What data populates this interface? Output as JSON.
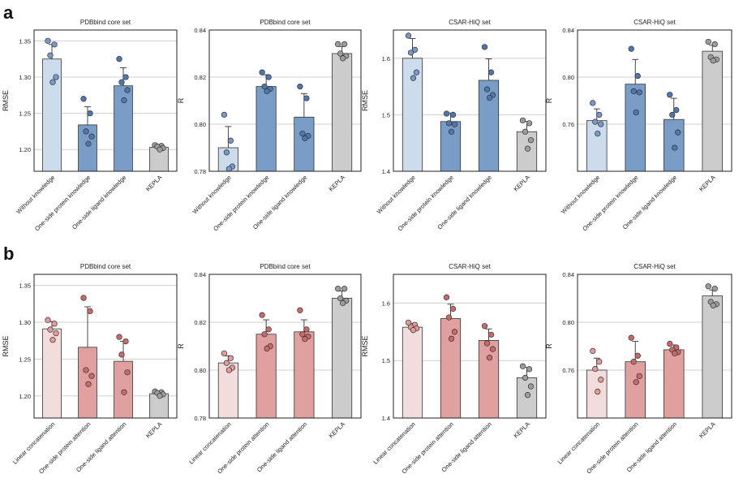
{
  "panel_labels": [
    "a",
    "b"
  ],
  "chart_data": [
    {
      "panel": "a",
      "type": "bar",
      "title": "PDBbind core set",
      "ylabel": "RMSE",
      "ylim": [
        1.17,
        1.365
      ],
      "yticks": [
        1.2,
        1.25,
        1.3,
        1.35
      ],
      "tick_decimals": 2,
      "categories": [
        "Without knowledge",
        "One-side protein knowledge",
        "One-side ligand knowledge",
        "KEPLA"
      ],
      "values": [
        1.325,
        1.234,
        1.288,
        1.203
      ],
      "errors": [
        0.02,
        0.025,
        0.025,
        0.003
      ],
      "colors": [
        "#cddcec",
        "#7a9dc8",
        "#7a9dc8",
        "#cccccc"
      ],
      "dot_colors": [
        "#7899c9",
        "#4f77ad",
        "#4f77ad",
        "#9c9c9c"
      ],
      "points": [
        [
          1.35,
          1.345,
          1.33,
          1.3,
          1.293
        ],
        [
          1.27,
          1.25,
          1.225,
          1.218,
          1.208
        ],
        [
          1.325,
          1.3,
          1.293,
          1.282,
          1.268
        ],
        [
          1.206,
          1.205,
          1.204,
          1.202,
          1.2
        ]
      ]
    },
    {
      "panel": "a",
      "type": "bar",
      "title": "PDBbind core set",
      "ylabel": "R",
      "ylim": [
        0.78,
        0.84
      ],
      "yticks": [
        0.78,
        0.8,
        0.82,
        0.84
      ],
      "tick_decimals": 2,
      "categories": [
        "Without knowledge",
        "One-side protein knowledge",
        "One-side ligand knowledge",
        "KEPLA"
      ],
      "values": [
        0.79,
        0.816,
        0.803,
        0.83
      ],
      "errors": [
        0.009,
        0.005,
        0.01,
        0.003
      ],
      "colors": [
        "#cddcec",
        "#7a9dc8",
        "#7a9dc8",
        "#cccccc"
      ],
      "dot_colors": [
        "#7899c9",
        "#4f77ad",
        "#4f77ad",
        "#9c9c9c"
      ],
      "points": [
        [
          0.804,
          0.793,
          0.788,
          0.782,
          0.781
        ],
        [
          0.822,
          0.82,
          0.816,
          0.815,
          0.814
        ],
        [
          0.816,
          0.811,
          0.796,
          0.795,
          0.794
        ],
        [
          0.834,
          0.834,
          0.83,
          0.829,
          0.828
        ]
      ]
    },
    {
      "panel": "a",
      "type": "bar",
      "title": "CSAR-HiQ set",
      "ylabel": "RMSE",
      "ylim": [
        1.4,
        1.65
      ],
      "yticks": [
        1.4,
        1.5,
        1.6
      ],
      "tick_decimals": 1,
      "categories": [
        "Without knowledge",
        "One-side protein knowledge",
        "One-side ligand knowledge",
        "KEPLA"
      ],
      "values": [
        1.6,
        1.488,
        1.561,
        1.47
      ],
      "errors": [
        0.035,
        0.015,
        0.038,
        0.018
      ],
      "colors": [
        "#cddcec",
        "#7a9dc8",
        "#7a9dc8",
        "#cccccc"
      ],
      "dot_colors": [
        "#7899c9",
        "#4f77ad",
        "#4f77ad",
        "#9c9c9c"
      ],
      "points": [
        [
          1.64,
          1.615,
          1.61,
          1.575,
          1.565
        ],
        [
          1.502,
          1.5,
          1.485,
          1.483,
          1.47
        ],
        [
          1.62,
          1.575,
          1.545,
          1.535,
          1.53
        ],
        [
          1.49,
          1.485,
          1.47,
          1.455,
          1.44
        ]
      ]
    },
    {
      "panel": "a",
      "type": "bar",
      "title": "CSAR-HiQ set",
      "ylabel": "R",
      "ylim": [
        0.72,
        0.84
      ],
      "yticks": [
        0.76,
        0.8,
        0.84
      ],
      "tick_decimals": 2,
      "categories": [
        "Without knowledge",
        "One-side protein knowledge",
        "One-side ligand knowledge",
        "KEPLA"
      ],
      "values": [
        0.763,
        0.794,
        0.764,
        0.822
      ],
      "errors": [
        0.01,
        0.021,
        0.018,
        0.005
      ],
      "colors": [
        "#cddcec",
        "#7a9dc8",
        "#7a9dc8",
        "#cccccc"
      ],
      "dot_colors": [
        "#7899c9",
        "#4f77ad",
        "#4f77ad",
        "#9c9c9c"
      ],
      "points": [
        [
          0.778,
          0.768,
          0.762,
          0.76,
          0.752
        ],
        [
          0.824,
          0.801,
          0.788,
          0.787,
          0.77
        ],
        [
          0.785,
          0.772,
          0.768,
          0.753,
          0.74
        ],
        [
          0.83,
          0.828,
          0.817,
          0.815,
          0.814
        ]
      ]
    },
    {
      "panel": "b",
      "type": "bar",
      "title": "PDBbind core set",
      "ylabel": "RMSE",
      "ylim": [
        1.17,
        1.365
      ],
      "yticks": [
        1.2,
        1.25,
        1.3,
        1.35
      ],
      "tick_decimals": 2,
      "categories": [
        "Linear concatenation",
        "One-side protein attention",
        "One-side ligand attention",
        "KEPLA"
      ],
      "values": [
        1.291,
        1.266,
        1.247,
        1.203
      ],
      "errors": [
        0.01,
        0.055,
        0.027,
        0.003
      ],
      "colors": [
        "#f3dcdc",
        "#e0a0a0",
        "#e0a0a0",
        "#cccccc"
      ],
      "dot_colors": [
        "#e29a9a",
        "#c96a6a",
        "#c96a6a",
        "#9c9c9c"
      ],
      "points": [
        [
          1.303,
          1.298,
          1.29,
          1.285,
          1.276
        ],
        [
          1.333,
          1.315,
          1.235,
          1.227,
          1.216
        ],
        [
          1.28,
          1.274,
          1.256,
          1.232,
          1.205
        ],
        [
          1.206,
          1.205,
          1.204,
          1.202,
          1.2
        ]
      ]
    },
    {
      "panel": "b",
      "type": "bar",
      "title": "PDBbind core set",
      "ylabel": "R",
      "ylim": [
        0.78,
        0.84
      ],
      "yticks": [
        0.78,
        0.8,
        0.82,
        0.84
      ],
      "tick_decimals": 2,
      "categories": [
        "Linear concatenation",
        "One-side protein attention",
        "One-side ligand attention",
        "KEPLA"
      ],
      "values": [
        0.803,
        0.815,
        0.816,
        0.83
      ],
      "errors": [
        0.003,
        0.006,
        0.005,
        0.003
      ],
      "colors": [
        "#f3dcdc",
        "#e0a0a0",
        "#e0a0a0",
        "#cccccc"
      ],
      "dot_colors": [
        "#e29a9a",
        "#c96a6a",
        "#c96a6a",
        "#9c9c9c"
      ],
      "points": [
        [
          0.807,
          0.805,
          0.803,
          0.801,
          0.8
        ],
        [
          0.823,
          0.817,
          0.815,
          0.81,
          0.809
        ],
        [
          0.825,
          0.817,
          0.815,
          0.814,
          0.813
        ],
        [
          0.834,
          0.834,
          0.83,
          0.829,
          0.828
        ]
      ]
    },
    {
      "panel": "b",
      "type": "bar",
      "title": "CSAR-HiQ set",
      "ylabel": "RMSE",
      "ylim": [
        1.4,
        1.65
      ],
      "yticks": [
        1.4,
        1.5,
        1.6
      ],
      "tick_decimals": 1,
      "categories": [
        "Linear concatenation",
        "One-side protein attention",
        "One-side ligand attention",
        "KEPLA"
      ],
      "values": [
        1.558,
        1.573,
        1.535,
        1.47
      ],
      "errors": [
        0.007,
        0.025,
        0.02,
        0.018
      ],
      "colors": [
        "#f3dcdc",
        "#e0a0a0",
        "#e0a0a0",
        "#cccccc"
      ],
      "dot_colors": [
        "#e29a9a",
        "#c96a6a",
        "#c96a6a",
        "#9c9c9c"
      ],
      "points": [
        [
          1.566,
          1.562,
          1.558,
          1.556,
          1.553
        ],
        [
          1.61,
          1.59,
          1.575,
          1.55,
          1.538
        ],
        [
          1.56,
          1.545,
          1.53,
          1.52,
          1.505
        ],
        [
          1.49,
          1.485,
          1.47,
          1.455,
          1.44
        ]
      ]
    },
    {
      "panel": "b",
      "type": "bar",
      "title": "CSAR-HiQ set",
      "ylabel": "R",
      "ylim": [
        0.72,
        0.84
      ],
      "yticks": [
        0.76,
        0.8,
        0.84
      ],
      "tick_decimals": 2,
      "categories": [
        "Linear concatenation",
        "One-side protein attention",
        "One-side ligand attention",
        "KEPLA"
      ],
      "values": [
        0.76,
        0.767,
        0.777,
        0.822
      ],
      "errors": [
        0.01,
        0.017,
        0.004,
        0.005
      ],
      "colors": [
        "#f3dcdc",
        "#e0a0a0",
        "#e0a0a0",
        "#cccccc"
      ],
      "dot_colors": [
        "#e29a9a",
        "#c96a6a",
        "#c96a6a",
        "#9c9c9c"
      ],
      "points": [
        [
          0.776,
          0.767,
          0.761,
          0.752,
          0.742
        ],
        [
          0.787,
          0.772,
          0.767,
          0.755,
          0.75
        ],
        [
          0.782,
          0.779,
          0.777,
          0.775,
          0.774
        ],
        [
          0.83,
          0.828,
          0.817,
          0.815,
          0.814
        ]
      ]
    }
  ]
}
